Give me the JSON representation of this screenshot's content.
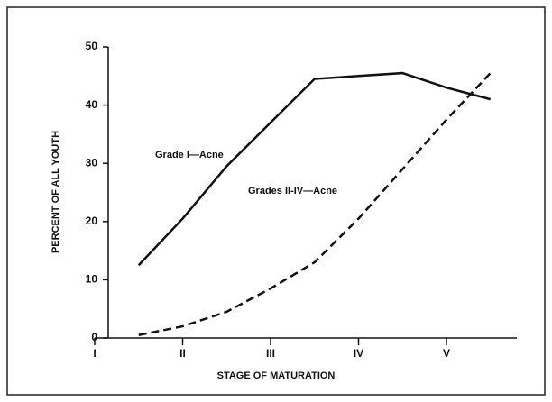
{
  "chart_data": {
    "type": "line",
    "x_label": "STAGE OF MATURATION",
    "y_label": "PERCENT OF ALL YOUTH",
    "x": [
      1.5,
      2,
      2.5,
      3,
      3.5,
      4,
      4.5,
      5,
      5.5
    ],
    "series": [
      {
        "name": "Grade I—Acne",
        "color": "#111111",
        "style": "solid",
        "values": [
          12.5,
          20.5,
          29.5,
          37,
          44.5,
          45,
          45.5,
          43,
          41
        ]
      },
      {
        "name": "Grades II-IV—Acne",
        "color": "#111111",
        "style": "dashed",
        "values": [
          0.5,
          2,
          4.5,
          8.5,
          13,
          20.5,
          29,
          37.5,
          45.5
        ]
      }
    ],
    "xlim": [
      1,
      5.8
    ],
    "xticks": [
      {
        "value": 1,
        "label": "I"
      },
      {
        "value": 2,
        "label": "II"
      },
      {
        "value": 3,
        "label": "III"
      },
      {
        "value": 4,
        "label": "IV"
      },
      {
        "value": 5,
        "label": "V"
      }
    ],
    "ylim": [
      0,
      50
    ],
    "yticks": [
      0,
      10,
      20,
      30,
      40,
      50
    ]
  }
}
